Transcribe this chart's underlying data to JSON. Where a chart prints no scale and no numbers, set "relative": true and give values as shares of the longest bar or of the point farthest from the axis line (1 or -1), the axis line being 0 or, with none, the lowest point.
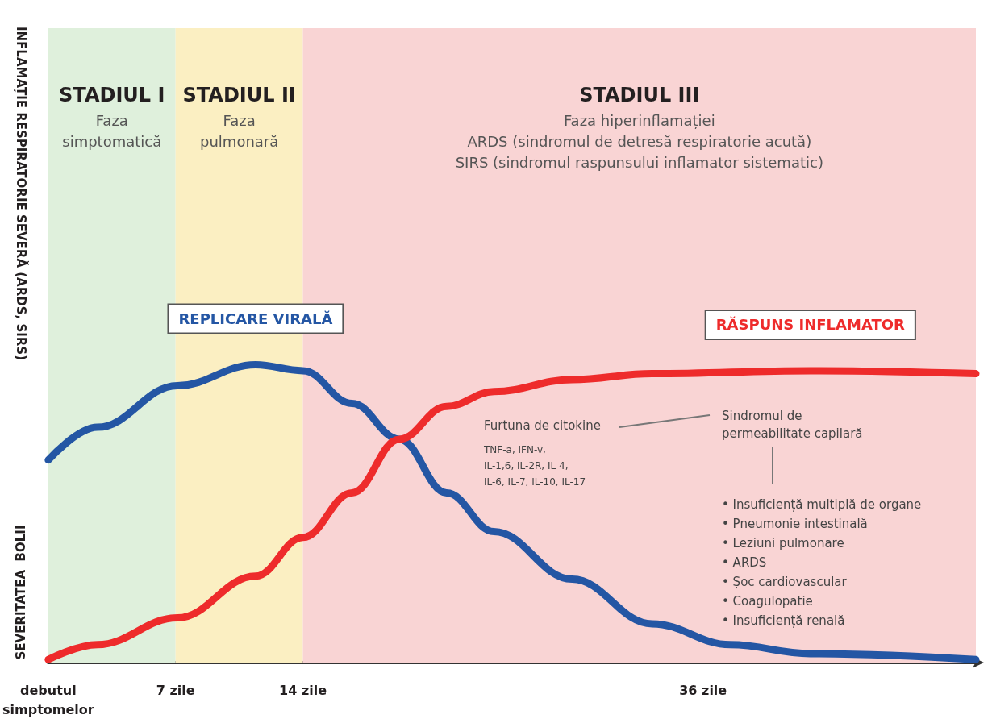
{
  "chart_data": {
    "type": "line",
    "relative": true,
    "ylabel": "SEVERITATEA  BOLII",
    "marker": "none",
    "line_style": "solid",
    "legend": false,
    "grid": false,
    "xlim": [
      0,
      51
    ],
    "xticks": [
      {
        "value": 0,
        "label": "debutul\nsimptomelor"
      },
      {
        "value": 7,
        "label": "7 zile"
      },
      {
        "value": 14,
        "label": "14 zile"
      },
      {
        "value": 36,
        "label": "36 zile"
      }
    ],
    "series": [
      {
        "name": "REPLICARE VIRALĂ",
        "color": "#2456a4",
        "x": [
          0,
          2.7,
          7.1,
          11.4,
          14,
          16.7,
          19.3,
          21.9,
          24.5,
          28.8,
          33.2,
          37.5,
          41.9,
          51
        ],
        "values": [
          0.68,
          0.79,
          0.93,
          1.0,
          0.98,
          0.87,
          0.75,
          0.57,
          0.44,
          0.28,
          0.13,
          0.06,
          0.03,
          0.01
        ]
      },
      {
        "name": "RĂSPUNS INFLAMATOR",
        "color": "#ee2b2b",
        "x": [
          0,
          2.7,
          7.1,
          11.4,
          14,
          16.7,
          19.3,
          21.9,
          24.5,
          28.8,
          33.2,
          41.9,
          51
        ],
        "values": [
          0.01,
          0.06,
          0.15,
          0.29,
          0.42,
          0.57,
          0.75,
          0.86,
          0.91,
          0.95,
          0.97,
          0.98,
          0.97
        ]
      }
    ],
    "bands": [
      {
        "axis": "x",
        "from": 0,
        "to": 7,
        "label": "STADIUL I\nFaza\nsimptomatică",
        "color": "#dff0dc"
      },
      {
        "axis": "x",
        "from": 7,
        "to": 14,
        "label": "STADIUL II\nFaza\npulmonară",
        "color": "#fbefc2"
      },
      {
        "axis": "x",
        "from": 14,
        "to": 51,
        "label": "STADIUL III\nFaza hiperinflamației\nARDS (sindromul de detresă respiratorie acută)\nSIRS (sindromul raspunsului inflamator sistematic)",
        "color": "#f9d4d4"
      }
    ],
    "annotations": [
      "INFLAMAȚIE RESPIRATORIE SEVERĂ (ARDS, SIRS)",
      "Furtuna de citokine",
      "TNF-a, IFN-v,\nIL-1,6, IL-2R, IL 4,\nIL-6, IL-7, IL-10, IL-17",
      "Sindromul de\npermeabilitate capilară",
      "• Insuficiență multiplă de organe\n• Pneumonie intestinală\n• Leziuni pulmonare\n• ARDS\n• Șoc cardiovascular\n• Coagulopatie\n• Insuficiență renală"
    ]
  }
}
